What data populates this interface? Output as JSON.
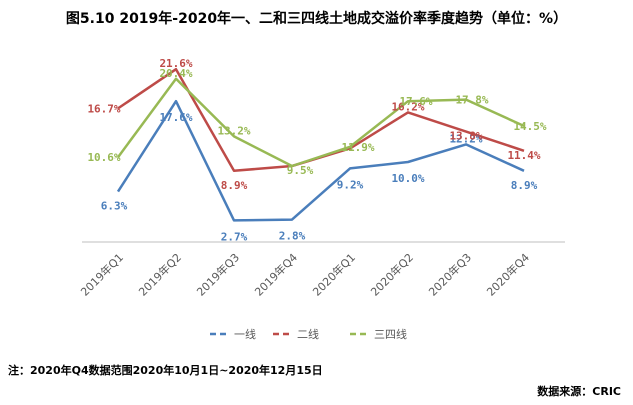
{
  "title": "图5.10 2019年-2020年一、二和三四线土地成交溢价率季度趋势（单位：%）",
  "note": "注：2020年Q4数据范围2020年10月1日~2020年12月15日",
  "source": "数据来源：CRIC",
  "chart_data": {
    "type": "line",
    "title": "图5.10 2019年-2020年一、二和三四线土地成交溢价率季度趋势（单位：%）",
    "xlabel": "",
    "ylabel": "",
    "ylim": [
      0,
      25
    ],
    "grid": false,
    "legend_position": "bottom",
    "categories": [
      "2019年Q1",
      "2019年Q2",
      "2019年Q3",
      "2019年Q4",
      "2020年Q1",
      "2020年Q2",
      "2020年Q3",
      "2020年Q4"
    ],
    "series": [
      {
        "name": "一线",
        "color": "#4a7ebb",
        "values": [
          6.3,
          17.6,
          2.7,
          2.8,
          9.2,
          10.0,
          12.2,
          8.9
        ],
        "labels": [
          "6.3%",
          "17.6%",
          "2.7%",
          "2.8%",
          "9.2%",
          "10.0%",
          "12.2%",
          "8.9%"
        ]
      },
      {
        "name": "二线",
        "color": "#be4b48",
        "values": [
          16.7,
          21.6,
          8.9,
          9.5,
          11.7,
          16.2,
          13.8,
          11.4
        ],
        "labels": [
          "16.7%",
          "21.6%",
          "8.9%",
          "",
          "",
          "16.2%",
          "13.8%",
          "11.4%"
        ]
      },
      {
        "name": "三四线",
        "color": "#98b954",
        "values": [
          10.6,
          20.4,
          13.2,
          9.5,
          11.9,
          17.6,
          17.8,
          14.5
        ],
        "labels": [
          "10.6%",
          "20.4%",
          "13.2%",
          "9.5%",
          "11.9%",
          "17.6%",
          "17.8%",
          "14.5%"
        ]
      }
    ]
  }
}
